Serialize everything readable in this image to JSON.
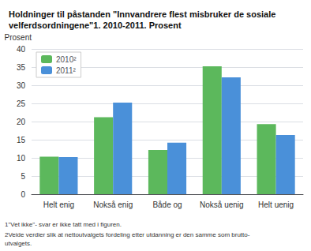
{
  "chart_data": {
    "type": "bar",
    "title": "Holdninger til påstanden \"Innvandrere flest misbruker de sosiale\nvelferdsordningene\"1. 2010-2011. Prosent",
    "ylabel": "Prosent",
    "categories": [
      "Helt enig",
      "Nokså enig",
      "Både og",
      "Nokså uenig",
      "Helt uenig"
    ],
    "series": [
      {
        "name": "2010²",
        "color": "#5cb85c",
        "values": [
          10.3,
          21.2,
          12.2,
          35.2,
          19.3
        ]
      },
      {
        "name": "2011²",
        "color": "#4a90d9",
        "values": [
          10.2,
          25.2,
          14.2,
          32.2,
          16.3
        ]
      }
    ],
    "ylim": [
      0,
      40
    ],
    "yticks": [
      0,
      5,
      10,
      15,
      20,
      25,
      30,
      35,
      40
    ],
    "grid": true,
    "legend": "upper left",
    "annotations": [
      "1\"Vet ikke\"- svar er ikke tatt med i figuren.",
      "2Veide verdier slik at nettoutvalgets fordeling etter utdanning er den samme som brutto-\nutvalgets."
    ]
  }
}
